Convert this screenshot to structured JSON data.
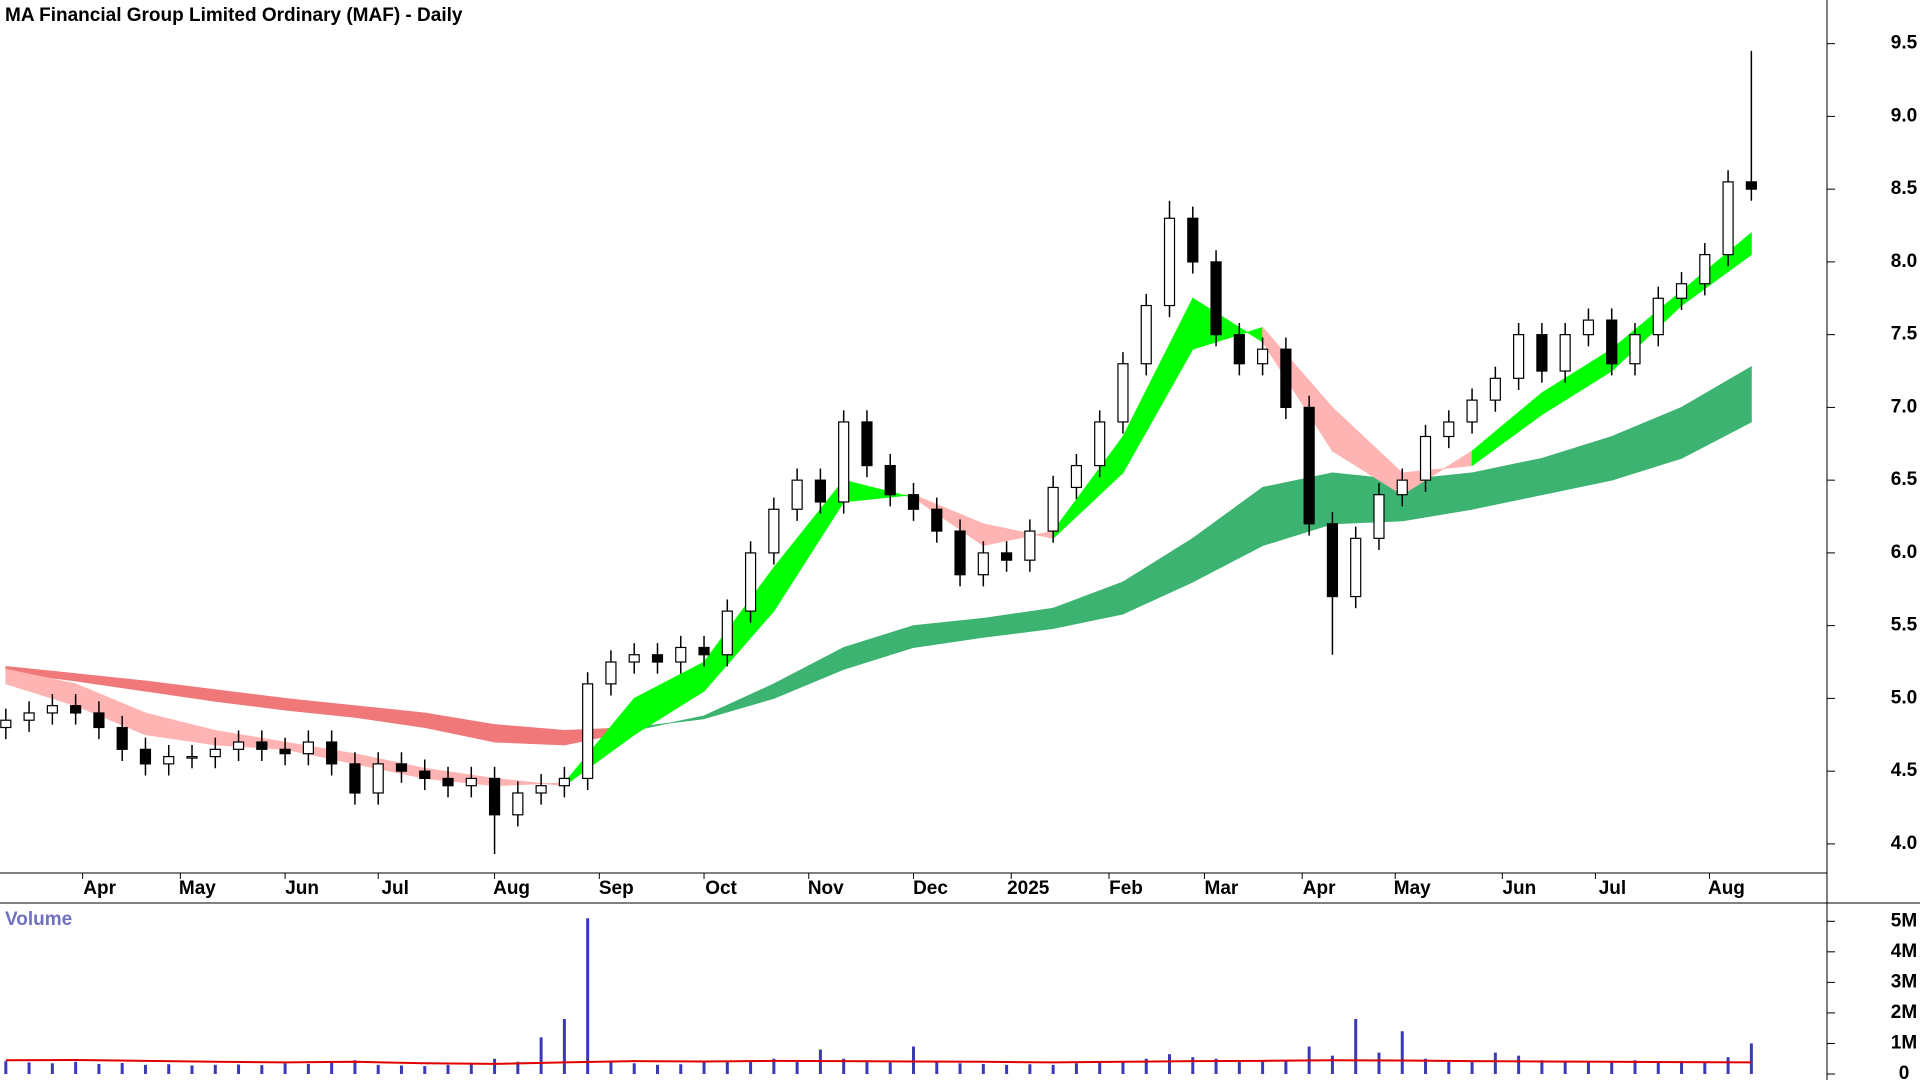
{
  "chart_data": {
    "type": "candlestick",
    "title": "MA Financial Group Limited Ordinary (MAF) - Daily",
    "x": [
      0,
      1,
      2,
      3,
      4,
      5,
      6,
      7,
      8,
      9,
      10,
      11,
      12,
      13,
      14,
      15,
      16,
      17,
      18,
      19,
      20,
      21,
      22,
      23,
      24,
      25,
      26,
      27,
      28,
      29,
      30,
      31,
      32,
      33,
      34,
      35,
      36,
      37,
      38,
      39,
      40,
      41,
      42,
      43,
      44,
      45,
      46,
      47,
      48,
      49,
      50,
      51,
      52,
      53,
      54,
      55,
      56,
      57,
      58,
      59,
      60,
      61,
      62,
      63,
      64,
      65,
      66,
      67,
      68,
      69,
      70,
      71,
      72,
      73,
      74,
      75
    ],
    "open": [
      4.8,
      4.85,
      4.9,
      4.95,
      4.9,
      4.8,
      4.65,
      4.55,
      4.6,
      4.6,
      4.65,
      4.7,
      4.65,
      4.62,
      4.7,
      4.55,
      4.35,
      4.55,
      4.5,
      4.45,
      4.4,
      4.45,
      4.2,
      4.35,
      4.4,
      4.45,
      5.1,
      5.25,
      5.3,
      5.25,
      5.35,
      5.3,
      5.6,
      6.0,
      6.3,
      6.5,
      6.35,
      6.9,
      6.6,
      6.4,
      6.3,
      6.15,
      5.85,
      6.0,
      5.95,
      6.15,
      6.45,
      6.6,
      6.9,
      7.3,
      7.7,
      8.3,
      8.0,
      7.5,
      7.3,
      7.4,
      7.0,
      6.2,
      5.7,
      6.1,
      6.4,
      6.5,
      6.8,
      6.9,
      7.05,
      7.2,
      7.5,
      7.25,
      7.5,
      7.6,
      7.3,
      7.5,
      7.75,
      7.85,
      8.05,
      8.55
    ],
    "high": [
      4.93,
      4.98,
      5.03,
      5.03,
      4.98,
      4.88,
      4.73,
      4.68,
      4.68,
      4.73,
      4.78,
      4.78,
      4.73,
      4.78,
      4.78,
      4.63,
      4.63,
      4.63,
      4.58,
      4.53,
      4.53,
      4.53,
      4.43,
      4.48,
      4.53,
      5.18,
      5.33,
      5.38,
      5.38,
      5.43,
      5.43,
      5.68,
      6.08,
      6.38,
      6.58,
      6.58,
      6.98,
      6.98,
      6.68,
      6.48,
      6.38,
      6.23,
      6.08,
      6.08,
      6.23,
      6.53,
      6.68,
      6.98,
      7.38,
      7.78,
      8.42,
      8.38,
      8.08,
      7.58,
      7.48,
      7.48,
      7.08,
      6.28,
      6.18,
      6.48,
      6.58,
      6.88,
      6.98,
      7.13,
      7.28,
      7.58,
      7.58,
      7.58,
      7.68,
      7.68,
      7.58,
      7.83,
      7.93,
      8.13,
      8.63,
      9.45
    ],
    "low": [
      4.72,
      4.77,
      4.82,
      4.82,
      4.72,
      4.57,
      4.47,
      4.47,
      4.52,
      4.52,
      4.57,
      4.57,
      4.54,
      4.54,
      4.47,
      4.27,
      4.27,
      4.42,
      4.37,
      4.32,
      4.32,
      3.93,
      4.12,
      4.27,
      4.32,
      4.37,
      5.02,
      5.17,
      5.17,
      5.17,
      5.22,
      5.22,
      5.52,
      5.92,
      6.22,
      6.27,
      6.27,
      6.52,
      6.32,
      6.22,
      6.07,
      5.77,
      5.77,
      5.87,
      5.87,
      6.07,
      6.37,
      6.52,
      6.82,
      7.22,
      7.62,
      7.92,
      7.42,
      7.22,
      7.22,
      6.92,
      6.12,
      5.3,
      5.62,
      6.02,
      6.32,
      6.42,
      6.72,
      6.82,
      6.97,
      7.12,
      7.17,
      7.17,
      7.42,
      7.22,
      7.22,
      7.42,
      7.67,
      7.77,
      7.97,
      8.42
    ],
    "close": [
      4.85,
      4.9,
      4.95,
      4.9,
      4.8,
      4.65,
      4.55,
      4.6,
      4.6,
      4.65,
      4.7,
      4.65,
      4.62,
      4.7,
      4.55,
      4.35,
      4.55,
      4.5,
      4.45,
      4.4,
      4.45,
      4.2,
      4.35,
      4.4,
      4.45,
      5.1,
      5.25,
      5.3,
      5.25,
      5.35,
      5.3,
      5.6,
      6.0,
      6.3,
      6.5,
      6.35,
      6.9,
      6.6,
      6.4,
      6.3,
      6.15,
      5.85,
      6.0,
      5.95,
      6.15,
      6.45,
      6.6,
      6.9,
      7.3,
      7.7,
      8.3,
      8.0,
      7.5,
      7.3,
      7.4,
      7.0,
      6.2,
      5.7,
      6.1,
      6.4,
      6.5,
      6.8,
      6.9,
      7.05,
      7.2,
      7.5,
      7.25,
      7.5,
      7.6,
      7.3,
      7.5,
      7.75,
      7.85,
      8.05,
      8.55,
      8.5
    ],
    "up_color": "#ffffff",
    "down_color": "#000000",
    "xlim": [
      -0.25,
      78.25
    ],
    "xticks": [
      {
        "value": 3.3,
        "label": "Apr"
      },
      {
        "value": 7.5,
        "label": "May"
      },
      {
        "value": 12.0,
        "label": "Jun"
      },
      {
        "value": 16.0,
        "label": "Jul"
      },
      {
        "value": 21.0,
        "label": "Aug"
      },
      {
        "value": 25.5,
        "label": "Sep"
      },
      {
        "value": 30.0,
        "label": "Oct"
      },
      {
        "value": 34.5,
        "label": "Nov"
      },
      {
        "value": 39.0,
        "label": "Dec"
      },
      {
        "value": 43.2,
        "label": "2025"
      },
      {
        "value": 47.4,
        "label": "Feb"
      },
      {
        "value": 51.5,
        "label": "Mar"
      },
      {
        "value": 55.7,
        "label": "Apr"
      },
      {
        "value": 59.7,
        "label": "May"
      },
      {
        "value": 64.3,
        "label": "Jun"
      },
      {
        "value": 68.3,
        "label": "Jul"
      },
      {
        "value": 73.2,
        "label": "Aug"
      }
    ],
    "ylim": [
      3.8,
      9.8
    ],
    "yticks": [
      {
        "value": 4,
        "label": "4.0"
      },
      4.5,
      {
        "value": 5,
        "label": "5.0"
      },
      5.5,
      {
        "value": 6,
        "label": "6.0"
      },
      6.5,
      {
        "value": 7,
        "label": "7.0"
      },
      7.5,
      {
        "value": 8,
        "label": "8.0"
      },
      8.5,
      {
        "value": 9,
        "label": "9.0"
      },
      9.5
    ],
    "ribbons": [
      {
        "x": [
          0,
          3,
          6,
          9,
          12,
          15,
          18,
          21,
          24,
          27,
          30,
          33,
          36,
          39,
          42,
          45,
          48,
          51,
          54,
          57,
          60,
          63,
          66,
          69,
          72,
          75
        ],
        "fast": [
          5.18,
          5.12,
          5.05,
          4.98,
          4.92,
          4.87,
          4.8,
          4.7,
          4.68,
          4.78,
          4.88,
          5.1,
          5.35,
          5.5,
          5.55,
          5.62,
          5.8,
          6.1,
          6.45,
          6.55,
          6.5,
          6.55,
          6.65,
          6.8,
          7.0,
          7.28
        ],
        "slow": [
          5.22,
          5.17,
          5.12,
          5.06,
          5.0,
          4.95,
          4.9,
          4.82,
          4.78,
          4.8,
          4.86,
          5.0,
          5.2,
          5.35,
          5.42,
          5.48,
          5.58,
          5.8,
          6.05,
          6.2,
          6.22,
          6.3,
          6.4,
          6.5,
          6.65,
          6.9
        ],
        "rising_color": "#3cb371",
        "falling_color": "#f07878"
      },
      {
        "x": [
          0,
          3,
          6,
          9,
          12,
          15,
          18,
          21,
          24,
          27,
          30,
          33,
          36,
          39,
          42,
          45,
          48,
          51,
          54,
          57,
          60,
          63,
          66,
          69,
          72,
          75
        ],
        "fast": [
          5.1,
          4.95,
          4.75,
          4.68,
          4.65,
          4.55,
          4.45,
          4.4,
          4.42,
          5.0,
          5.25,
          5.9,
          6.5,
          6.38,
          6.05,
          6.15,
          6.8,
          7.75,
          7.45,
          6.7,
          6.4,
          6.7,
          7.1,
          7.4,
          7.8,
          8.2
        ],
        "slow": [
          5.2,
          5.1,
          4.9,
          4.78,
          4.7,
          4.62,
          4.52,
          4.45,
          4.4,
          4.75,
          5.05,
          5.6,
          6.35,
          6.4,
          6.2,
          6.1,
          6.55,
          7.4,
          7.55,
          7.0,
          6.55,
          6.6,
          6.95,
          7.25,
          7.7,
          8.05
        ],
        "rising_color": "#00ff00",
        "falling_color": "#ffb4b4"
      }
    ],
    "volume": {
      "title": "Volume",
      "values": [
        420000,
        380000,
        350000,
        400000,
        330000,
        360000,
        300000,
        320000,
        280000,
        300000,
        310000,
        290000,
        350000,
        330000,
        420000,
        450000,
        300000,
        280000,
        260000,
        300000,
        320000,
        500000,
        400000,
        1200000,
        1800000,
        5100000,
        400000,
        350000,
        300000,
        320000,
        380000,
        420000,
        450000,
        500000,
        400000,
        800000,
        500000,
        450000,
        380000,
        900000,
        400000,
        350000,
        330000,
        300000,
        320000,
        300000,
        350000,
        400000,
        380000,
        500000,
        650000,
        550000,
        500000,
        420000,
        400000,
        450000,
        900000,
        600000,
        1800000,
        700000,
        1400000,
        500000,
        450000,
        400000,
        700000,
        600000,
        450000,
        400000,
        420000,
        380000,
        450000,
        400000,
        420000,
        380000,
        550000,
        1000000
      ],
      "average": [
        450000,
        460000,
        430000,
        400000,
        380000,
        400000,
        350000,
        330000,
        380000,
        420000,
        410000,
        430000,
        420000,
        410000,
        400000,
        380000,
        400000,
        420000,
        430000,
        450000,
        440000,
        420000,
        410000,
        400000,
        390000,
        380000
      ],
      "color": "#3a3ab8",
      "average_color": "#e00000",
      "ylim": [
        0,
        5500000
      ],
      "yticks": [
        0,
        {
          "value": 1000000,
          "label": "1M"
        },
        {
          "value": 2000000,
          "label": "2M"
        },
        {
          "value": 3000000,
          "label": "3M"
        },
        {
          "value": 4000000,
          "label": "4M"
        },
        {
          "value": 5000000,
          "label": "5M"
        }
      ]
    }
  }
}
